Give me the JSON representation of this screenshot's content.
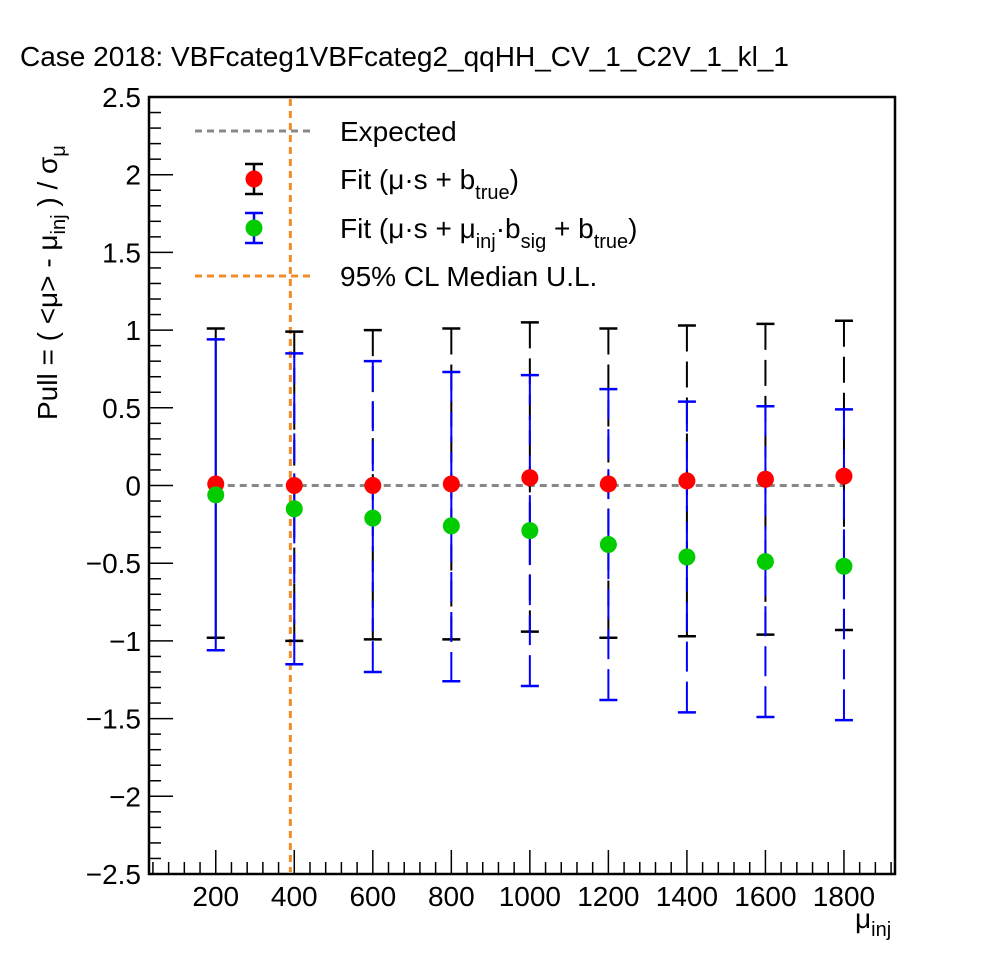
{
  "chart_data": {
    "type": "scatter",
    "title": "Case 2018: VBFcateg1VBFcateg2_qqHH_CV_1_C2V_1_kl_1",
    "xlabel": "μ",
    "xlabel_sub": "inj",
    "ylabel": "Pull = ( <μ> - μ",
    "ylabel_sub": "inj",
    "ylabel_tail": " ) / σ",
    "ylabel_tail_sub": "μ",
    "xlim": [
      30,
      1930
    ],
    "ylim": [
      -2.5,
      2.5
    ],
    "x_ticks": [
      200,
      400,
      600,
      800,
      1000,
      1200,
      1400,
      1600,
      1800
    ],
    "x_tick_labels": [
      "200",
      "400",
      "600",
      "800",
      "1000",
      "1200",
      "1400",
      "1600",
      "1800"
    ],
    "y_ticks": [
      -2.5,
      -2,
      -1.5,
      -1,
      -0.5,
      0,
      0.5,
      1,
      1.5,
      2,
      2.5
    ],
    "y_tick_labels": [
      "−2.5",
      "−2",
      "−1.5",
      "−1",
      "−0.5",
      "0",
      "0.5",
      "1",
      "1.5",
      "2",
      "2.5"
    ],
    "grid": false,
    "legend_position": "top-left",
    "expected_line": {
      "y": 0,
      "color": "#888888"
    },
    "median_ul_line": {
      "x": 390,
      "color": "#f28c28"
    },
    "series": [
      {
        "name": "Fit (μ·s + b",
        "name_sub": "true",
        "name_tail": ")",
        "marker_color": "#ff0000",
        "error_color": "#000000",
        "x": [
          200,
          400,
          600,
          800,
          1000,
          1200,
          1400,
          1600,
          1800
        ],
        "y": [
          0.01,
          0.0,
          0.0,
          0.01,
          0.05,
          0.01,
          0.03,
          0.04,
          0.06
        ],
        "y_low": [
          -0.98,
          -1.0,
          -0.99,
          -0.99,
          -0.94,
          -0.98,
          -0.97,
          -0.96,
          -0.93
        ],
        "y_high": [
          1.01,
          0.99,
          1.0,
          1.01,
          1.05,
          1.01,
          1.03,
          1.04,
          1.06
        ]
      },
      {
        "name": "Fit (μ·s + μ",
        "name_sub": "inj",
        "name_mid": "·b",
        "name_sub2": "sig",
        "name_mid2": " + b",
        "name_sub3": "true",
        "name_tail": ")",
        "marker_color": "#00cc00",
        "error_color": "#0000ff",
        "x": [
          200,
          400,
          600,
          800,
          1000,
          1200,
          1400,
          1600,
          1800
        ],
        "y": [
          -0.06,
          -0.15,
          -0.21,
          -0.26,
          -0.29,
          -0.38,
          -0.46,
          -0.49,
          -0.52
        ],
        "y_low": [
          -1.06,
          -1.15,
          -1.2,
          -1.26,
          -1.29,
          -1.38,
          -1.46,
          -1.49,
          -1.51
        ],
        "y_high": [
          0.94,
          0.85,
          0.8,
          0.73,
          0.71,
          0.62,
          0.54,
          0.51,
          0.49
        ]
      }
    ],
    "legend": [
      {
        "key": "expected",
        "label": "Expected"
      },
      {
        "key": "fit_true",
        "label": "Fit (μ·s + b",
        "sub": "true",
        "tail": ")"
      },
      {
        "key": "fit_inj",
        "label": "Fit (μ·s + μ",
        "sub": "inj",
        "mid": "·b",
        "sub2": "sig",
        "mid2": " + b",
        "sub3": "true",
        "tail": ")"
      },
      {
        "key": "median_ul",
        "label": "95% CL Median U.L."
      }
    ]
  }
}
